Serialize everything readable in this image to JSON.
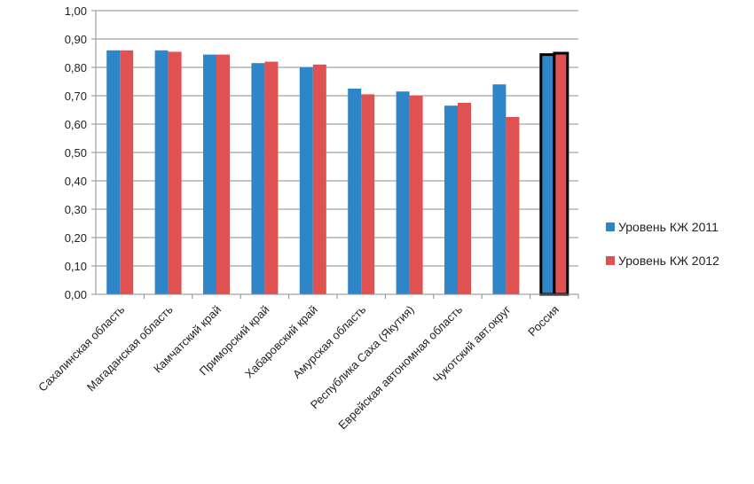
{
  "chart_data": {
    "type": "bar",
    "categories": [
      "Сахалинская область",
      "Магаданская область",
      "Камчатский край",
      "Приморский край",
      "Хабаровский край",
      "Амурская область",
      "Республика Саха (Якутия)",
      "Еврейская автономная область",
      "Чукотский авт.округ",
      "Россия"
    ],
    "series": [
      {
        "name": "Уровень КЖ 2011",
        "color": "#2e86c8",
        "values": [
          0.86,
          0.86,
          0.845,
          0.815,
          0.8,
          0.725,
          0.715,
          0.665,
          0.74,
          0.845
        ]
      },
      {
        "name": "Уровень КЖ 2012",
        "color": "#e05151",
        "values": [
          0.86,
          0.855,
          0.845,
          0.82,
          0.81,
          0.705,
          0.7,
          0.675,
          0.625,
          0.85
        ]
      }
    ],
    "highlighted_category": "Россия",
    "ylim": [
      0,
      1.0
    ],
    "yticks": [
      "0,00",
      "0,10",
      "0,20",
      "0,30",
      "0,40",
      "0,50",
      "0,60",
      "0,70",
      "0,80",
      "0,90",
      "1,00"
    ],
    "grid": true,
    "legend_position": "right"
  }
}
